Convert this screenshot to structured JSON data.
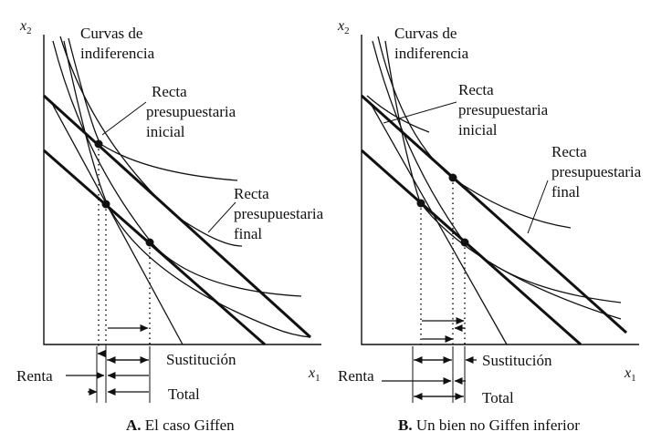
{
  "panels": [
    {
      "axis_y": "x",
      "axis_y_sub": "2",
      "axis_x": "x",
      "axis_x_sub": "1",
      "label_curves": [
        "Curvas de",
        "indiferencia"
      ],
      "label_initial_budget": [
        "Recta",
        "presupuestaria",
        "inicial"
      ],
      "label_final_budget": [
        "Recta",
        "presupuestaria",
        "final"
      ],
      "label_renta": "Renta",
      "label_sustitucion": "Sustitución",
      "label_total": "Total",
      "caption_letter": "A.",
      "caption_text": "El caso Giffen"
    },
    {
      "axis_y": "x",
      "axis_y_sub": "2",
      "axis_x": "x",
      "axis_x_sub": "1",
      "label_curves": [
        "Curvas de",
        "indiferencia"
      ],
      "label_initial_budget": [
        "Recta",
        "presupuestaria",
        "inicial"
      ],
      "label_final_budget": [
        "Recta",
        "presupuestaria",
        "final"
      ],
      "label_renta": "Renta",
      "label_sustitucion": "Sustitución",
      "label_total": "Total",
      "caption_letter": "B.",
      "caption_text": "Un bien no Giffen inferior"
    }
  ]
}
